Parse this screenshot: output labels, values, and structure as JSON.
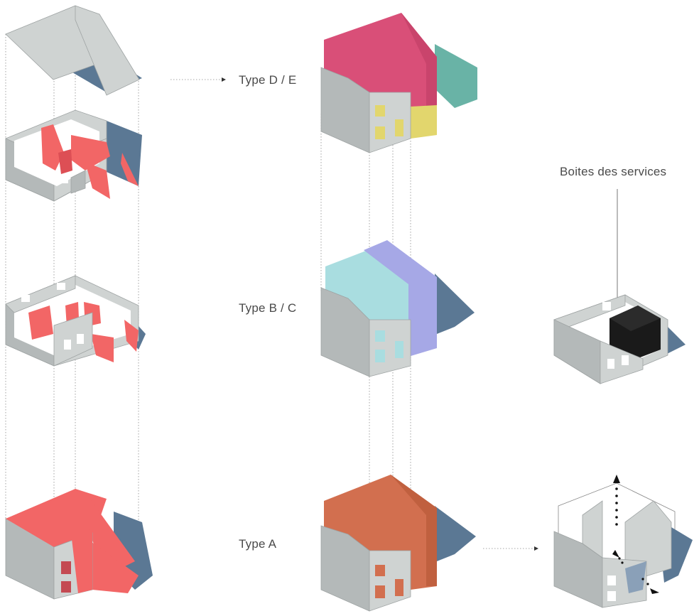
{
  "labels": {
    "type_de": "Type D / E",
    "type_bc": "Type B / C",
    "type_a": "Type A",
    "services": "Boites des services"
  },
  "colors": {
    "wall": "#cfd3d2",
    "shadow": "#5b7894",
    "partition_red": "#f26666",
    "type_d": "#d94f78",
    "type_e_yellow": "#e2d66d",
    "type_e_teal": "#69b3a6",
    "type_b_cyan": "#a9dde0",
    "type_c_violet": "#a6a8e6",
    "type_a_orange": "#d26f4f",
    "service_box": "#1a1a1a"
  }
}
